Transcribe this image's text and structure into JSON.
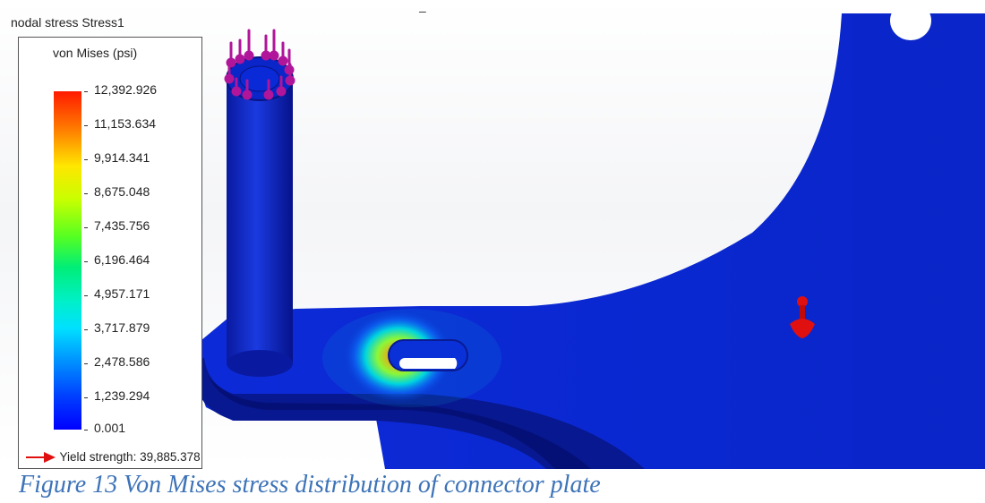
{
  "viewport": {
    "header": "nodal stress Stress1",
    "top_fragment": "–",
    "legend": {
      "title": "von Mises (psi)",
      "tick_labels": [
        "12,392.926",
        "11,153.634",
        "9,914.341",
        "8,675.048",
        "7,435.756",
        "6,196.464",
        "4,957.171",
        "3,717.879",
        "2,478.586",
        "1,239.294",
        "0.001"
      ],
      "max": 12392.926,
      "min": 0.001,
      "yield_label": "Yield strength: 39,885.378",
      "yield_value": 39885.378,
      "colormap": [
        "#0000ff",
        "#0040ff",
        "#0090ff",
        "#00e0ff",
        "#00f0c8",
        "#00ee77",
        "#55ff22",
        "#c8ff00",
        "#ffe600",
        "#ff7a00",
        "#ff1a00"
      ]
    },
    "colors": {
      "part_dark_blue": "#0a1a9a",
      "part_blue": "#0a2ad0",
      "load_arrow": "#b0159a",
      "fixture_marker": "#e01010",
      "yield_arrow": "#e01010"
    }
  },
  "caption": "Figure 13 Von Mises stress distribution of connector plate"
}
